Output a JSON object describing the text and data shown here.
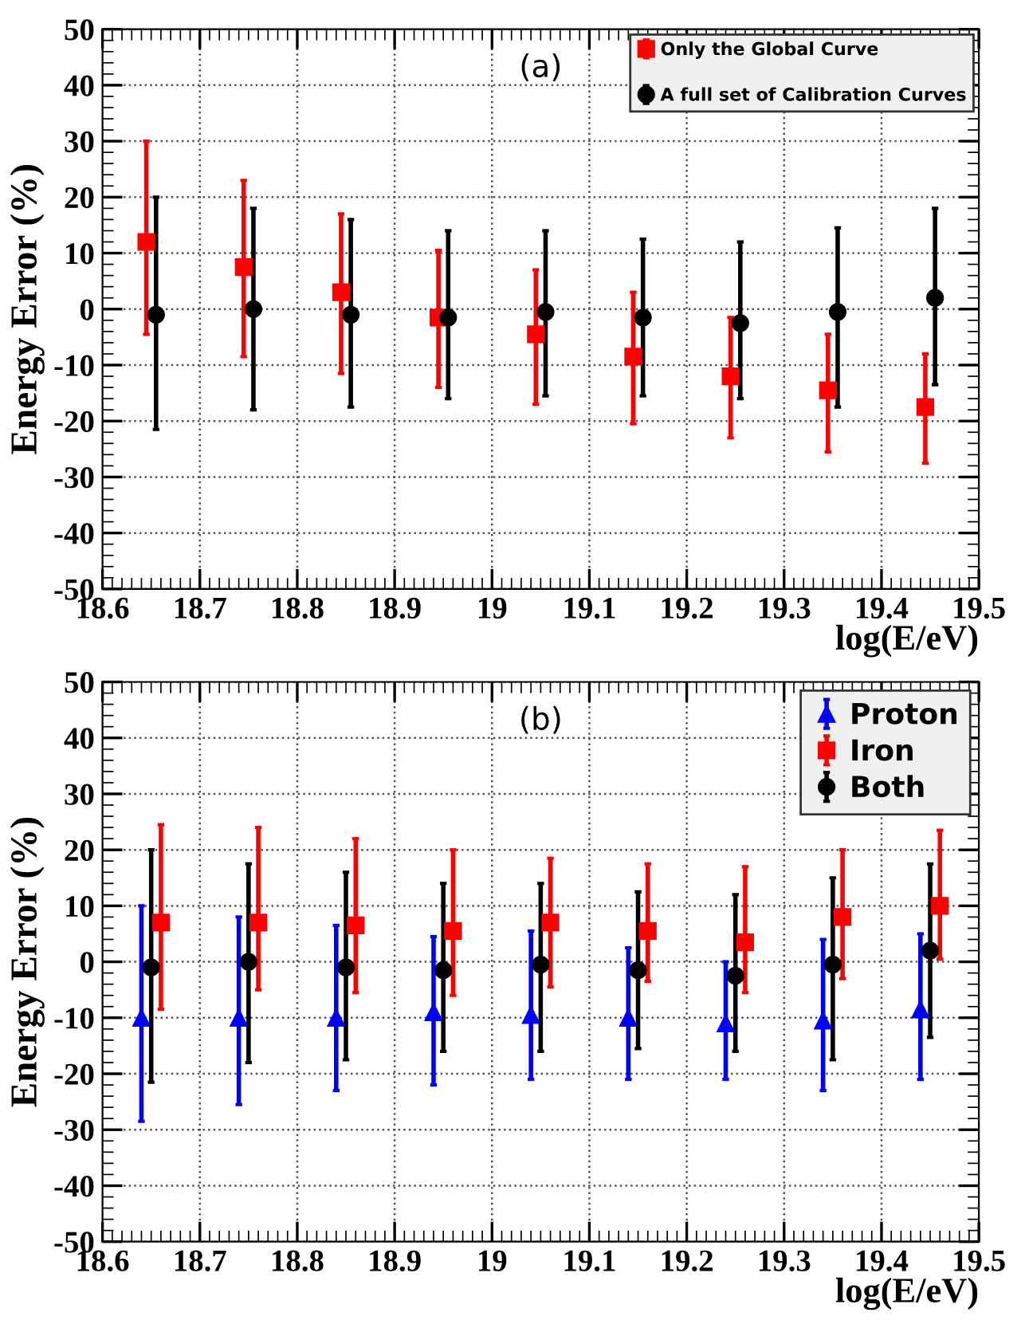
{
  "chart_data": [
    {
      "type": "scatter",
      "title": "(a)",
      "ylabel": "Energy Error (%)",
      "xlabel": "log(E/eV)",
      "xlim": [
        18.6,
        19.5
      ],
      "ylim": [
        -50,
        50
      ],
      "xticks": [
        18.6,
        18.7,
        18.8,
        18.9,
        19,
        19.1,
        19.2,
        19.3,
        19.4,
        19.5
      ],
      "yticks": [
        -50,
        -40,
        -30,
        -20,
        -10,
        0,
        10,
        20,
        30,
        40,
        50
      ],
      "grid": true,
      "legend": "top right",
      "series": [
        {
          "name": "Only the Global Curve",
          "color": "#ff0000",
          "marker": "square",
          "x": [
            18.645,
            18.745,
            18.845,
            18.945,
            19.045,
            19.145,
            19.245,
            19.345,
            19.445
          ],
          "values": [
            12,
            7.5,
            3,
            -1.5,
            -4.5,
            -8.5,
            -12,
            -14.5,
            -17.5
          ],
          "errors": [
            [
              -4.5,
              30
            ],
            [
              -8.5,
              23
            ],
            [
              -11.5,
              17
            ],
            [
              -14,
              10.5
            ],
            [
              -17,
              7
            ],
            [
              -20.5,
              3
            ],
            [
              -23,
              -1.5
            ],
            [
              -25.5,
              -4.5
            ],
            [
              -27.5,
              -8
            ]
          ]
        },
        {
          "name": "A full set of Calibration Curves",
          "color": "#000000",
          "marker": "circle",
          "x": [
            18.655,
            18.755,
            18.855,
            18.955,
            19.055,
            19.155,
            19.255,
            19.355,
            19.455
          ],
          "values": [
            -1,
            0,
            -1,
            -1.5,
            -0.5,
            -1.5,
            -2.5,
            -0.5,
            2
          ],
          "errors": [
            [
              -21.5,
              20
            ],
            [
              -18,
              18
            ],
            [
              -17.5,
              16
            ],
            [
              -16,
              14
            ],
            [
              -15.5,
              14
            ],
            [
              -15.5,
              12.5
            ],
            [
              -16,
              12
            ],
            [
              -17.5,
              14.5
            ],
            [
              -13.5,
              18
            ]
          ]
        }
      ]
    },
    {
      "type": "scatter",
      "title": "(b)",
      "ylabel": "Energy Error (%)",
      "xlabel": "log(E/eV)",
      "xlim": [
        18.6,
        19.5
      ],
      "ylim": [
        -50,
        50
      ],
      "xticks": [
        18.6,
        18.7,
        18.8,
        18.9,
        19,
        19.1,
        19.2,
        19.3,
        19.4,
        19.5
      ],
      "yticks": [
        -50,
        -40,
        -30,
        -20,
        -10,
        0,
        10,
        20,
        30,
        40,
        50
      ],
      "grid": true,
      "legend": "top right",
      "series": [
        {
          "name": "Proton",
          "color": "#0000ff",
          "marker": "triangle",
          "x": [
            18.64,
            18.74,
            18.84,
            18.94,
            19.04,
            19.14,
            19.24,
            19.34,
            19.44
          ],
          "values": [
            -10,
            -10,
            -10,
            -9,
            -9.5,
            -10,
            -11,
            -10.5,
            -8.5
          ],
          "errors": [
            [
              -28.5,
              10
            ],
            [
              -25.5,
              8
            ],
            [
              -23,
              6.5
            ],
            [
              -22,
              4.5
            ],
            [
              -21,
              5.5
            ],
            [
              -21,
              2.5
            ],
            [
              -21,
              0
            ],
            [
              -23,
              4
            ],
            [
              -21,
              5
            ]
          ]
        },
        {
          "name": "Iron",
          "color": "#ff0000",
          "marker": "square",
          "x": [
            18.66,
            18.76,
            18.86,
            18.96,
            19.06,
            19.16,
            19.26,
            19.36,
            19.46
          ],
          "values": [
            7,
            7,
            6.5,
            5.5,
            7,
            5.5,
            3.5,
            8,
            10
          ],
          "errors": [
            [
              -8.5,
              24.5
            ],
            [
              -5,
              24
            ],
            [
              -5.5,
              22
            ],
            [
              -6,
              20
            ],
            [
              -4.5,
              18.5
            ],
            [
              -3.5,
              17.5
            ],
            [
              -5.5,
              17
            ],
            [
              -3,
              20
            ],
            [
              0.5,
              23.5
            ]
          ]
        },
        {
          "name": "Both",
          "color": "#000000",
          "marker": "circle",
          "x": [
            18.65,
            18.75,
            18.85,
            18.95,
            19.05,
            19.15,
            19.25,
            19.35,
            19.45
          ],
          "values": [
            -1,
            0,
            -1,
            -1.5,
            -0.5,
            -1.5,
            -2.5,
            -0.5,
            2
          ],
          "errors": [
            [
              -21.5,
              20
            ],
            [
              -18,
              17.5
            ],
            [
              -17.5,
              16
            ],
            [
              -16,
              14
            ],
            [
              -16,
              14
            ],
            [
              -15.5,
              12.5
            ],
            [
              -16,
              12
            ],
            [
              -17.5,
              15
            ],
            [
              -13.5,
              17.5
            ]
          ]
        }
      ]
    }
  ]
}
